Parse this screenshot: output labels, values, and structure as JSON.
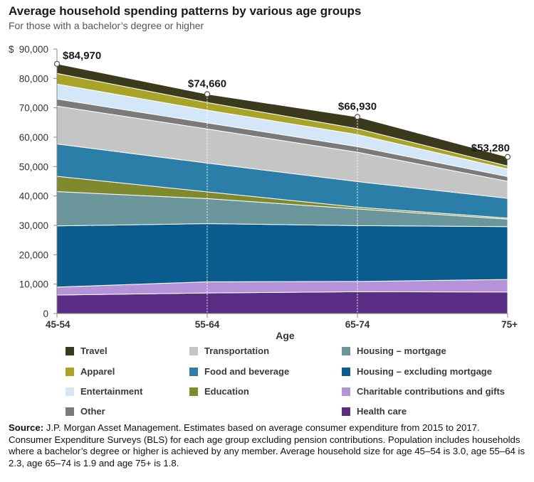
{
  "header": {
    "title": "Average household spending patterns by various age groups",
    "subtitle": "For those with a bachelor’s degree or higher"
  },
  "chart_data": {
    "type": "area",
    "stacked": true,
    "title": "Average household spending patterns by various age groups",
    "subtitle": "For those with a bachelor’s degree or higher",
    "xlabel": "Age",
    "ylabel": "",
    "ylim": [
      0,
      90000
    ],
    "y_ticks": [
      "0",
      "10,000",
      "20,000",
      "30,000",
      "40,000",
      "50,000",
      "60,000",
      "70,000",
      "80,000",
      "90,000"
    ],
    "y_currency": "$",
    "categories": [
      "45-54",
      "55-64",
      "65-74",
      "75+"
    ],
    "totals": [
      84970,
      74660,
      66930,
      53280
    ],
    "total_labels": [
      "$84,970",
      "$74,660",
      "$66,930",
      "$53,280"
    ],
    "series": [
      {
        "name": "Health care",
        "color": "#5b2c83",
        "values": [
          6300,
          7000,
          7400,
          7300
        ]
      },
      {
        "name": "Charitable contributions and gifts",
        "color": "#b593d8",
        "values": [
          2700,
          3800,
          3500,
          4300
        ]
      },
      {
        "name": "Housing – excluding mortgage",
        "color": "#0b5c8e",
        "values": [
          20800,
          19800,
          19000,
          18000
        ]
      },
      {
        "name": "Housing – mortgage",
        "color": "#6a969c",
        "values": [
          11700,
          8500,
          5700,
          2500
        ]
      },
      {
        "name": "Education",
        "color": "#7f8a2e",
        "values": [
          5200,
          2300,
          600,
          400
        ]
      },
      {
        "name": "Food and beverage",
        "color": "#2a7ea8",
        "values": [
          11000,
          9800,
          8700,
          6700
        ]
      },
      {
        "name": "Transportation",
        "color": "#c5c5c5",
        "values": [
          12900,
          11600,
          10000,
          5800
        ]
      },
      {
        "name": "Other",
        "color": "#7a7a7a",
        "values": [
          2400,
          2100,
          1900,
          1600
        ]
      },
      {
        "name": "Entertainment",
        "color": "#d4e7f8",
        "values": [
          5100,
          4300,
          4100,
          2600
        ]
      },
      {
        "name": "Apparel",
        "color": "#a9a32a",
        "values": [
          3600,
          2600,
          2000,
          1000
        ]
      },
      {
        "name": "Travel",
        "color": "#3b3a1c",
        "values": [
          3270,
          2860,
          4030,
          3080
        ]
      }
    ]
  },
  "legend": {
    "items": [
      {
        "label": "Travel",
        "color": "#3b3a1c"
      },
      {
        "label": "Apparel",
        "color": "#a9a32a"
      },
      {
        "label": "Entertainment",
        "color": "#d4e7f8"
      },
      {
        "label": "Other",
        "color": "#7a7a7a"
      },
      {
        "label": "Transportation",
        "color": "#c5c5c5"
      },
      {
        "label": "Food and beverage",
        "color": "#2a7ea8"
      },
      {
        "label": "Education",
        "color": "#7f8a2e"
      },
      {
        "label": "Housing – mortgage",
        "color": "#6a969c"
      },
      {
        "label": "Housing – excluding mortgage",
        "color": "#0b5c8e"
      },
      {
        "label": "Charitable contributions and gifts",
        "color": "#b593d8"
      },
      {
        "label": "Health care",
        "color": "#5b2c83"
      }
    ]
  },
  "source": {
    "label": "Source:",
    "text": " J.P. Morgan Asset Management. Estimates based on average consumer expenditure from 2015 to 2017. Consumer Expenditure Surveys (BLS) for each age group excluding pension contributions. Population includes households where a bachelor’s degree or higher is achieved by any member. Average household size for age 45–54 is 3.0, age 55–64 is 2.3, age 65–74 is 1.9 and age 75+ is 1.8."
  }
}
